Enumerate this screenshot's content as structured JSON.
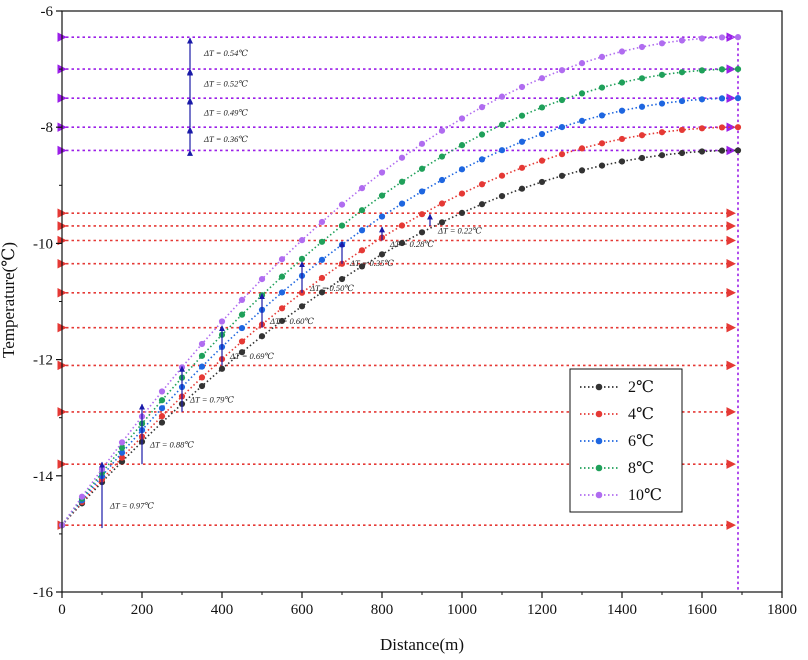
{
  "chart_data": {
    "type": "line",
    "xlabel": "Distance(m)",
    "ylabel": "Temperature(℃)",
    "xlim": [
      0,
      1800
    ],
    "ylim": [
      -16,
      -6
    ],
    "xticks": [
      0,
      200,
      400,
      600,
      800,
      1000,
      1200,
      1400,
      1600,
      1800
    ],
    "yticks": [
      -6,
      -8,
      -10,
      -12,
      -14,
      -16
    ],
    "x_max": 1690,
    "y_start": -14.85,
    "legend_position": "lower-right",
    "series": [
      {
        "name": "2℃",
        "color": "#333333",
        "end": -8.4
      },
      {
        "name": "4℃",
        "color": "#e53935",
        "end": -8.0
      },
      {
        "name": "6℃",
        "color": "#1e66e0",
        "end": -7.5
      },
      {
        "name": "8℃",
        "color": "#1fa05a",
        "end": -7.0
      },
      {
        "name": "10℃",
        "color": "#b06cf0",
        "end": -6.45
      }
    ],
    "red_reference_levels": [
      -14.85,
      -13.8,
      -12.9,
      -12.1,
      -11.45,
      -10.85,
      -10.35,
      -9.95,
      -9.7,
      -9.48
    ],
    "purple_reference_levels": [
      -8.4,
      -8.0,
      -7.5,
      -7.0,
      -6.45
    ],
    "red_annotations": [
      {
        "x": 100,
        "y_top": -13.75,
        "y_bottom": -14.9,
        "label": "ΔT = 0.97℃"
      },
      {
        "x": 200,
        "y_top": -12.75,
        "y_bottom": -13.8,
        "label": "ΔT = 0.88℃"
      },
      {
        "x": 300,
        "y_top": -12.1,
        "y_bottom": -12.9,
        "label": "ΔT = 0.79℃"
      },
      {
        "x": 400,
        "y_top": -11.4,
        "y_bottom": -12.1,
        "label": "ΔT = 0.69℃"
      },
      {
        "x": 500,
        "y_top": -10.85,
        "y_bottom": -11.45,
        "label": "ΔT = 0.60℃"
      },
      {
        "x": 600,
        "y_top": -10.3,
        "y_bottom": -10.85,
        "label": "ΔT = 0.50℃"
      },
      {
        "x": 700,
        "y_top": -9.95,
        "y_bottom": -10.35,
        "label": "ΔT = 0.35℃"
      },
      {
        "x": 800,
        "y_top": -9.7,
        "y_bottom": -9.95,
        "label": "ΔT = 0.28℃"
      },
      {
        "x": 920,
        "y_top": -9.48,
        "y_bottom": -9.7,
        "label": "ΔT = 0.22℃"
      }
    ],
    "purple_annotations": [
      {
        "y_top": -6.45,
        "y_bottom": -7.0,
        "label": "ΔT = 0.54℃"
      },
      {
        "y_top": -7.0,
        "y_bottom": -7.5,
        "label": "ΔT = 0.52℃"
      },
      {
        "y_top": -7.5,
        "y_bottom": -8.0,
        "label": "ΔT = 0.49℃"
      },
      {
        "y_top": -8.0,
        "y_bottom": -8.4,
        "label": "ΔT = 0.36℃"
      }
    ],
    "purple_annotation_x": 320
  },
  "colors": {
    "red_ref": "#e53935",
    "purple_ref": "#9b1fe8",
    "annotation_arrow": "#1a1aa8"
  }
}
